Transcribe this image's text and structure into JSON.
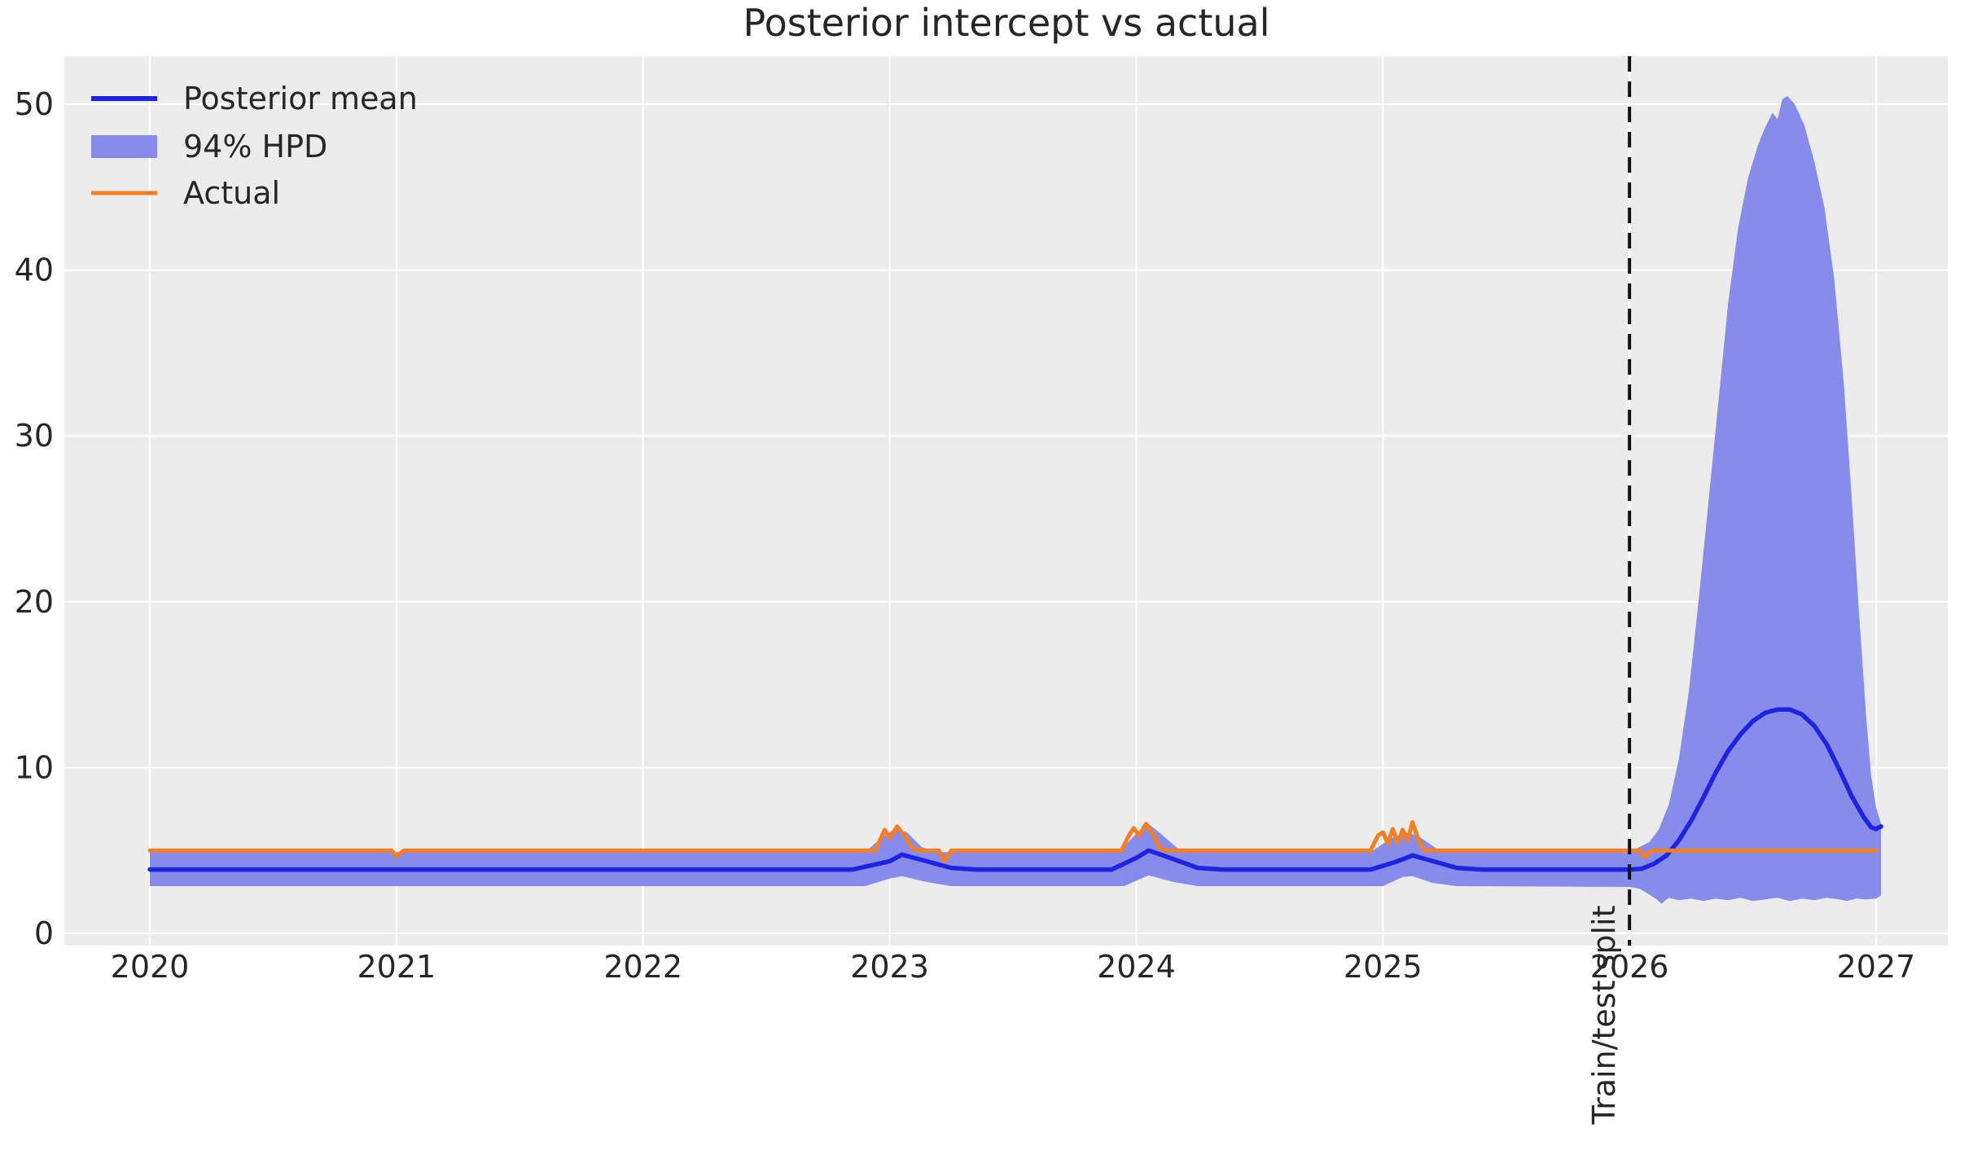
{
  "title": "Posterior intercept vs actual",
  "legend": {
    "items": [
      {
        "label": "Posterior mean",
        "type": "line",
        "color": "#1e23e1"
      },
      {
        "label": "94% HPD",
        "type": "patch",
        "color": "#878be9"
      },
      {
        "label": "Actual",
        "type": "line",
        "color": "#f57f20"
      }
    ]
  },
  "annotation": {
    "train_test_split_label": "Train/test split"
  },
  "axes": {
    "x_tick_labels": [
      "2020",
      "2021",
      "2022",
      "2023",
      "2024",
      "2025",
      "2026",
      "2027"
    ],
    "y_tick_labels": [
      "0",
      "10",
      "20",
      "30",
      "40",
      "50"
    ]
  },
  "colors": {
    "posterior_mean": "#1e23e1",
    "hpd_band": "#878be9",
    "actual": "#f57f20",
    "split_line": "#111111",
    "plot_background": "#ececec",
    "gridline": "#ffffff",
    "text": "#262626"
  },
  "chart_data": {
    "type": "line",
    "title": "Posterior intercept vs actual",
    "x_ticks": [
      2020,
      2021,
      2022,
      2023,
      2024,
      2025,
      2026,
      2027
    ],
    "y_ticks": [
      0,
      10,
      20,
      30,
      40,
      50
    ],
    "x_range": [
      2019.65,
      2027.29
    ],
    "y_range": [
      -0.74,
      52.9
    ],
    "grid": true,
    "legend_position": "upper left",
    "train_test_split_x": 2026.0,
    "series": [
      {
        "name": "Posterior mean",
        "points": [
          [
            2020.0,
            3.85
          ],
          [
            2022.85,
            3.85
          ],
          [
            2023.0,
            4.35
          ],
          [
            2023.05,
            4.75
          ],
          [
            2023.1,
            4.55
          ],
          [
            2023.25,
            3.95
          ],
          [
            2023.35,
            3.85
          ],
          [
            2023.9,
            3.85
          ],
          [
            2024.0,
            4.55
          ],
          [
            2024.05,
            5.0
          ],
          [
            2024.1,
            4.75
          ],
          [
            2024.25,
            3.95
          ],
          [
            2024.35,
            3.85
          ],
          [
            2024.95,
            3.85
          ],
          [
            2025.05,
            4.3
          ],
          [
            2025.12,
            4.7
          ],
          [
            2025.18,
            4.45
          ],
          [
            2025.3,
            3.95
          ],
          [
            2025.4,
            3.85
          ],
          [
            2026.0,
            3.85
          ],
          [
            2026.05,
            3.9
          ],
          [
            2026.1,
            4.2
          ],
          [
            2026.15,
            4.7
          ],
          [
            2026.2,
            5.6
          ],
          [
            2026.25,
            6.8
          ],
          [
            2026.3,
            8.2
          ],
          [
            2026.35,
            9.7
          ],
          [
            2026.4,
            11.0
          ],
          [
            2026.45,
            12.0
          ],
          [
            2026.5,
            12.8
          ],
          [
            2026.55,
            13.3
          ],
          [
            2026.6,
            13.5
          ],
          [
            2026.65,
            13.5
          ],
          [
            2026.7,
            13.2
          ],
          [
            2026.75,
            12.5
          ],
          [
            2026.8,
            11.4
          ],
          [
            2026.85,
            9.9
          ],
          [
            2026.9,
            8.3
          ],
          [
            2026.95,
            7.0
          ],
          [
            2026.98,
            6.4
          ],
          [
            2027.0,
            6.3
          ],
          [
            2027.02,
            6.45
          ]
        ]
      },
      {
        "name": "94% HPD upper",
        "points": [
          [
            2020.0,
            4.9
          ],
          [
            2022.9,
            4.9
          ],
          [
            2022.97,
            5.8
          ],
          [
            2023.02,
            6.3
          ],
          [
            2023.07,
            6.1
          ],
          [
            2023.13,
            5.2
          ],
          [
            2023.2,
            4.9
          ],
          [
            2023.93,
            4.9
          ],
          [
            2024.0,
            6.0
          ],
          [
            2024.05,
            6.6
          ],
          [
            2024.1,
            6.0
          ],
          [
            2024.17,
            5.1
          ],
          [
            2024.25,
            4.9
          ],
          [
            2024.95,
            4.9
          ],
          [
            2025.03,
            5.7
          ],
          [
            2025.09,
            6.1
          ],
          [
            2025.14,
            5.9
          ],
          [
            2025.22,
            5.1
          ],
          [
            2025.3,
            4.9
          ],
          [
            2026.0,
            4.9
          ],
          [
            2026.08,
            5.5
          ],
          [
            2026.12,
            6.3
          ],
          [
            2026.16,
            7.8
          ],
          [
            2026.2,
            10.5
          ],
          [
            2026.24,
            14.5
          ],
          [
            2026.28,
            20
          ],
          [
            2026.32,
            26
          ],
          [
            2026.36,
            32
          ],
          [
            2026.4,
            38
          ],
          [
            2026.44,
            42.5
          ],
          [
            2026.48,
            45.5
          ],
          [
            2026.52,
            47.5
          ],
          [
            2026.55,
            48.6
          ],
          [
            2026.58,
            49.5
          ],
          [
            2026.6,
            49.1
          ],
          [
            2026.62,
            50.3
          ],
          [
            2026.64,
            50.5
          ],
          [
            2026.67,
            50.0
          ],
          [
            2026.71,
            48.7
          ],
          [
            2026.75,
            46.5
          ],
          [
            2026.79,
            43.8
          ],
          [
            2026.83,
            39.5
          ],
          [
            2026.87,
            33.0
          ],
          [
            2026.9,
            26.5
          ],
          [
            2026.93,
            19.5
          ],
          [
            2026.96,
            13.0
          ],
          [
            2026.98,
            9.5
          ],
          [
            2027.0,
            7.6
          ],
          [
            2027.02,
            6.6
          ]
        ]
      },
      {
        "name": "94% HPD lower",
        "points": [
          [
            2020.0,
            2.85
          ],
          [
            2022.9,
            2.85
          ],
          [
            2023.0,
            3.3
          ],
          [
            2023.05,
            3.45
          ],
          [
            2023.15,
            3.1
          ],
          [
            2023.25,
            2.85
          ],
          [
            2023.95,
            2.85
          ],
          [
            2024.05,
            3.5
          ],
          [
            2024.15,
            3.1
          ],
          [
            2024.25,
            2.85
          ],
          [
            2025.0,
            2.85
          ],
          [
            2025.08,
            3.4
          ],
          [
            2025.12,
            3.45
          ],
          [
            2025.2,
            3.05
          ],
          [
            2025.3,
            2.85
          ],
          [
            2026.0,
            2.8
          ],
          [
            2026.04,
            2.7
          ],
          [
            2026.08,
            2.35
          ],
          [
            2026.11,
            2.05
          ],
          [
            2026.13,
            1.8
          ],
          [
            2026.16,
            2.15
          ],
          [
            2026.2,
            2.0
          ],
          [
            2026.25,
            2.1
          ],
          [
            2026.3,
            1.95
          ],
          [
            2026.35,
            2.1
          ],
          [
            2026.4,
            2.0
          ],
          [
            2026.45,
            2.15
          ],
          [
            2026.5,
            1.95
          ],
          [
            2026.55,
            2.05
          ],
          [
            2026.6,
            2.15
          ],
          [
            2026.65,
            1.95
          ],
          [
            2026.7,
            2.1
          ],
          [
            2026.75,
            2.0
          ],
          [
            2026.8,
            2.15
          ],
          [
            2026.85,
            2.05
          ],
          [
            2026.88,
            1.95
          ],
          [
            2026.92,
            2.1
          ],
          [
            2026.96,
            2.05
          ],
          [
            2027.0,
            2.1
          ],
          [
            2027.02,
            2.3
          ]
        ]
      },
      {
        "name": "Actual",
        "points": [
          [
            2020.0,
            5
          ],
          [
            2020.98,
            5
          ],
          [
            2021.0,
            4.65
          ],
          [
            2021.03,
            5
          ],
          [
            2022.94,
            5
          ],
          [
            2022.96,
            5.6
          ],
          [
            2022.98,
            6.25
          ],
          [
            2023.0,
            5.75
          ],
          [
            2023.03,
            6.45
          ],
          [
            2023.06,
            5.9
          ],
          [
            2023.09,
            5.15
          ],
          [
            2023.12,
            5
          ],
          [
            2023.2,
            5
          ],
          [
            2023.22,
            4.35
          ],
          [
            2023.25,
            5
          ],
          [
            2023.94,
            5
          ],
          [
            2023.97,
            5.9
          ],
          [
            2023.99,
            6.35
          ],
          [
            2024.01,
            5.9
          ],
          [
            2024.04,
            6.6
          ],
          [
            2024.07,
            5.9
          ],
          [
            2024.1,
            5.05
          ],
          [
            2024.13,
            5
          ],
          [
            2024.95,
            5
          ],
          [
            2024.98,
            5.9
          ],
          [
            2025.0,
            6.1
          ],
          [
            2025.02,
            5.4
          ],
          [
            2025.04,
            6.3
          ],
          [
            2025.06,
            5.45
          ],
          [
            2025.08,
            6.25
          ],
          [
            2025.1,
            5.6
          ],
          [
            2025.12,
            6.7
          ],
          [
            2025.15,
            5.4
          ],
          [
            2025.17,
            5
          ],
          [
            2026.04,
            5
          ],
          [
            2026.06,
            4.6
          ],
          [
            2026.09,
            5
          ],
          [
            2027.0,
            5
          ]
        ]
      }
    ]
  }
}
